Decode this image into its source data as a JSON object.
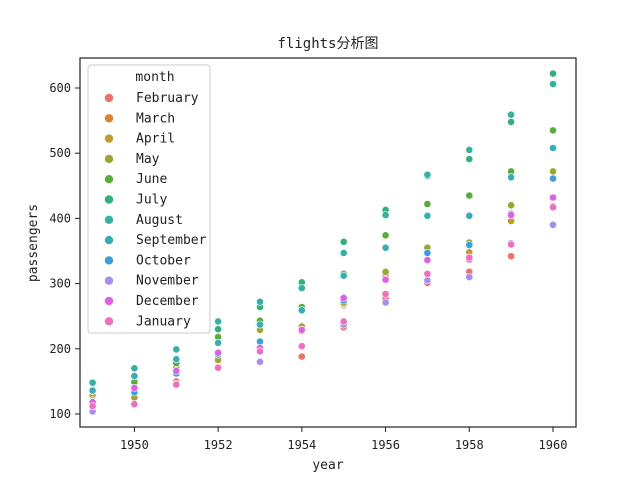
{
  "chart_data": {
    "type": "scatter",
    "title": "flights分析图",
    "xlabel": "year",
    "ylabel": "passengers",
    "xlim": [
      1948.7,
      1960.55
    ],
    "ylim": [
      80,
      646
    ],
    "xticks": [
      1950,
      1952,
      1954,
      1956,
      1958,
      1960
    ],
    "yticks": [
      100,
      200,
      300,
      400,
      500,
      600
    ],
    "grid": false,
    "legend_title": "month",
    "legend_position": "top-left",
    "series": [
      {
        "name": "February",
        "color": "#f0706a",
        "x": [
          1949,
          1950,
          1951,
          1952,
          1953,
          1954,
          1955,
          1956,
          1957,
          1958,
          1959,
          1960
        ],
        "y": [
          118,
          126,
          150,
          180,
          196,
          188,
          233,
          277,
          301,
          318,
          342,
          391
        ]
      },
      {
        "name": "March",
        "color": "#e07f2c",
        "x": [
          1949,
          1950,
          1951,
          1952,
          1953,
          1954,
          1955,
          1956,
          1957,
          1958,
          1959,
          1960
        ],
        "y": [
          132,
          141,
          178,
          193,
          236,
          235,
          267,
          317,
          356,
          362,
          406,
          419
        ]
      },
      {
        "name": "April",
        "color": "#c19c27",
        "x": [
          1949,
          1950,
          1951,
          1952,
          1953,
          1954,
          1955,
          1956,
          1957,
          1958,
          1959,
          1960
        ],
        "y": [
          129,
          135,
          163,
          181,
          235,
          227,
          269,
          313,
          348,
          348,
          396,
          461
        ]
      },
      {
        "name": "May",
        "color": "#9ca52d",
        "x": [
          1949,
          1950,
          1951,
          1952,
          1953,
          1954,
          1955,
          1956,
          1957,
          1958,
          1959,
          1960
        ],
        "y": [
          121,
          125,
          172,
          183,
          229,
          234,
          270,
          318,
          355,
          363,
          420,
          472
        ]
      },
      {
        "name": "June",
        "color": "#56ae34",
        "x": [
          1949,
          1950,
          1951,
          1952,
          1953,
          1954,
          1955,
          1956,
          1957,
          1958,
          1959,
          1960
        ],
        "y": [
          135,
          149,
          178,
          218,
          243,
          264,
          315,
          374,
          422,
          435,
          472,
          535
        ]
      },
      {
        "name": "July",
        "color": "#2fb07c",
        "x": [
          1949,
          1950,
          1951,
          1952,
          1953,
          1954,
          1955,
          1956,
          1957,
          1958,
          1959,
          1960
        ],
        "y": [
          148,
          170,
          199,
          230,
          264,
          302,
          364,
          413,
          465,
          491,
          548,
          622
        ]
      },
      {
        "name": "August",
        "color": "#32b2a0",
        "x": [
          1949,
          1950,
          1951,
          1952,
          1953,
          1954,
          1955,
          1956,
          1957,
          1958,
          1959,
          1960
        ],
        "y": [
          148,
          170,
          199,
          242,
          272,
          293,
          347,
          405,
          467,
          505,
          559,
          606
        ]
      },
      {
        "name": "September",
        "color": "#34aeb8",
        "x": [
          1949,
          1950,
          1951,
          1952,
          1953,
          1954,
          1955,
          1956,
          1957,
          1958,
          1959,
          1960
        ],
        "y": [
          136,
          158,
          184,
          209,
          237,
          259,
          312,
          355,
          404,
          404,
          463,
          508
        ]
      },
      {
        "name": "October",
        "color": "#3a9fe0",
        "x": [
          1949,
          1950,
          1951,
          1952,
          1953,
          1954,
          1955,
          1956,
          1957,
          1958,
          1959,
          1960
        ],
        "y": [
          119,
          133,
          162,
          191,
          211,
          229,
          274,
          306,
          347,
          359,
          407,
          461
        ]
      },
      {
        "name": "November",
        "color": "#a48ef0",
        "x": [
          1949,
          1950,
          1951,
          1952,
          1953,
          1954,
          1955,
          1956,
          1957,
          1958,
          1959,
          1960
        ],
        "y": [
          104,
          114,
          146,
          172,
          180,
          203,
          237,
          271,
          305,
          310,
          362,
          390
        ]
      },
      {
        "name": "December",
        "color": "#e25ee8",
        "x": [
          1949,
          1950,
          1951,
          1952,
          1953,
          1954,
          1955,
          1956,
          1957,
          1958,
          1959,
          1960
        ],
        "y": [
          118,
          140,
          166,
          194,
          201,
          229,
          278,
          306,
          336,
          337,
          405,
          432
        ]
      },
      {
        "name": "January",
        "color": "#f06dc0",
        "x": [
          1949,
          1950,
          1951,
          1952,
          1953,
          1954,
          1955,
          1956,
          1957,
          1958,
          1959,
          1960
        ],
        "y": [
          112,
          115,
          145,
          171,
          196,
          204,
          242,
          284,
          315,
          340,
          360,
          417
        ]
      }
    ]
  }
}
